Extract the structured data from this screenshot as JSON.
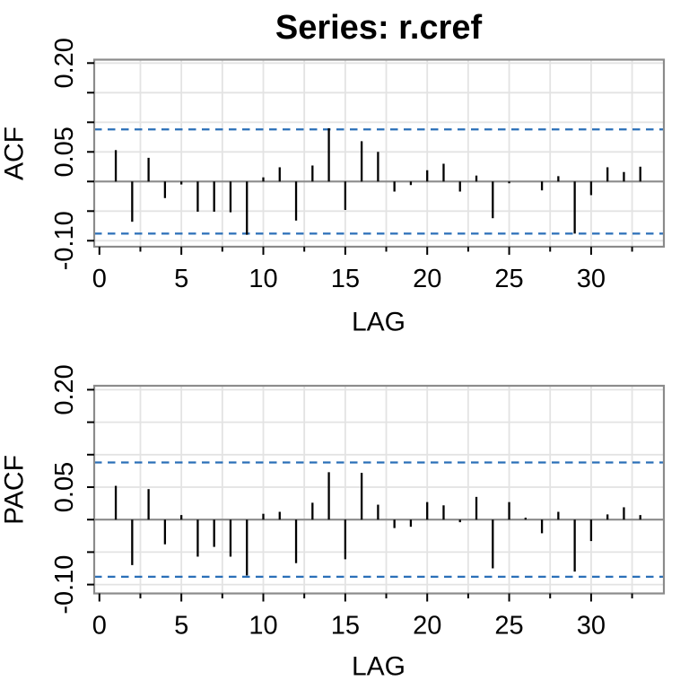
{
  "title": "Series:  r.cref",
  "axes": {
    "x": {
      "label": "LAG",
      "major_ticks": [
        0,
        5,
        10,
        15,
        20,
        25,
        30
      ],
      "major_tick_labels": [
        "0",
        "5",
        "10",
        "15",
        "20",
        "25",
        "30"
      ],
      "minor_ticks": [
        2.5,
        7.5,
        12.5,
        17.5,
        22.5,
        27.5,
        32.5
      ],
      "range": [
        -0.35,
        34.45
      ]
    },
    "y": {
      "ticks": [
        0.2,
        0.15,
        0.1,
        0.05,
        0,
        -0.05,
        -0.1
      ],
      "tick_labels": [
        "0.20",
        "",
        "",
        "0.05",
        "",
        "",
        "-0.10"
      ],
      "range": [
        -0.113,
        0.206
      ]
    }
  },
  "confidence_band": {
    "upper": 0.088,
    "lower": -0.088,
    "line_style": "dashed"
  },
  "colors": {
    "bar": "#000000",
    "ci_line": "#2a6fb8",
    "grid": "#e3e3e3",
    "axis": "#8b8b8b",
    "background": "#ffffff",
    "text": "#000000"
  },
  "chart_data": [
    {
      "type": "bar",
      "name": "ACF",
      "ylabel": "ACF",
      "xlabel": "LAG",
      "ylim": [
        -0.113,
        0.206
      ],
      "grid": true,
      "lags": [
        1,
        2,
        3,
        4,
        5,
        6,
        7,
        8,
        9,
        10,
        11,
        12,
        13,
        14,
        15,
        16,
        17,
        18,
        19,
        20,
        21,
        22,
        23,
        24,
        25,
        26,
        27,
        28,
        29,
        30,
        31,
        32,
        33
      ],
      "values": [
        0.053,
        -0.068,
        0.04,
        -0.028,
        -0.005,
        -0.051,
        -0.051,
        -0.052,
        -0.09,
        0.007,
        0.024,
        -0.066,
        0.027,
        0.09,
        -0.048,
        0.068,
        0.05,
        -0.017,
        -0.006,
        0.019,
        0.03,
        -0.017,
        0.01,
        -0.062,
        -0.003,
        0.0,
        -0.015,
        0.009,
        -0.088,
        -0.023,
        0.024,
        0.016,
        0.025
      ]
    },
    {
      "type": "bar",
      "name": "PACF",
      "ylabel": "PACF",
      "xlabel": "LAG",
      "ylim": [
        -0.113,
        0.206
      ],
      "grid": true,
      "lags": [
        1,
        2,
        3,
        4,
        5,
        6,
        7,
        8,
        9,
        10,
        11,
        12,
        13,
        14,
        15,
        16,
        17,
        18,
        19,
        20,
        21,
        22,
        23,
        24,
        25,
        26,
        27,
        28,
        29,
        30,
        31,
        32,
        33
      ],
      "values": [
        0.052,
        -0.07,
        0.047,
        -0.038,
        0.007,
        -0.057,
        -0.042,
        -0.057,
        -0.086,
        0.009,
        0.012,
        -0.067,
        0.026,
        0.073,
        -0.061,
        0.072,
        0.023,
        -0.013,
        -0.011,
        0.027,
        0.022,
        -0.004,
        0.035,
        -0.075,
        0.027,
        0.003,
        -0.021,
        0.012,
        -0.08,
        -0.033,
        0.008,
        0.019,
        0.007
      ]
    }
  ]
}
